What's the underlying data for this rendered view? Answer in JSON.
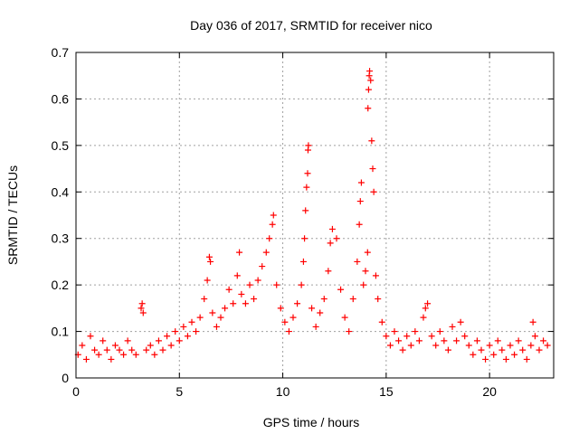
{
  "chart_data": {
    "type": "scatter",
    "title": "Day 036 of 2017, SRMTID for receiver nico",
    "xlabel": "GPS time / hours",
    "ylabel": "SRMTID / TECUs",
    "xlim": [
      0,
      23.1
    ],
    "ylim": [
      0,
      0.7
    ],
    "xticks": [
      0,
      5,
      10,
      15,
      20
    ],
    "xtick_labels": [
      "0",
      "5",
      "10",
      "15",
      "20"
    ],
    "yticks": [
      0,
      0.1,
      0.2,
      0.3,
      0.4,
      0.5,
      0.6,
      0.7
    ],
    "ytick_labels": [
      "0",
      "0.1",
      "0.2",
      "0.3",
      "0.4",
      "0.5",
      "0.6",
      "0.7"
    ],
    "grid": true,
    "marker": "plus",
    "series": [
      {
        "name": "SRMTID",
        "color": "#ff0000",
        "points": [
          [
            0.1,
            0.05
          ],
          [
            0.3,
            0.07
          ],
          [
            0.5,
            0.04
          ],
          [
            0.7,
            0.09
          ],
          [
            0.9,
            0.06
          ],
          [
            1.1,
            0.05
          ],
          [
            1.3,
            0.08
          ],
          [
            1.5,
            0.06
          ],
          [
            1.7,
            0.04
          ],
          [
            1.9,
            0.07
          ],
          [
            2.1,
            0.06
          ],
          [
            2.3,
            0.05
          ],
          [
            2.5,
            0.08
          ],
          [
            2.7,
            0.06
          ],
          [
            2.9,
            0.05
          ],
          [
            3.15,
            0.15
          ],
          [
            3.2,
            0.16
          ],
          [
            3.25,
            0.14
          ],
          [
            3.4,
            0.06
          ],
          [
            3.6,
            0.07
          ],
          [
            3.8,
            0.05
          ],
          [
            4.0,
            0.08
          ],
          [
            4.2,
            0.06
          ],
          [
            4.4,
            0.09
          ],
          [
            4.6,
            0.07
          ],
          [
            4.8,
            0.1
          ],
          [
            5.0,
            0.08
          ],
          [
            5.2,
            0.11
          ],
          [
            5.4,
            0.09
          ],
          [
            5.6,
            0.12
          ],
          [
            5.8,
            0.1
          ],
          [
            6.0,
            0.13
          ],
          [
            6.2,
            0.17
          ],
          [
            6.35,
            0.21
          ],
          [
            6.45,
            0.26
          ],
          [
            6.5,
            0.25
          ],
          [
            6.6,
            0.14
          ],
          [
            6.8,
            0.11
          ],
          [
            7.0,
            0.13
          ],
          [
            7.2,
            0.15
          ],
          [
            7.4,
            0.19
          ],
          [
            7.6,
            0.16
          ],
          [
            7.8,
            0.22
          ],
          [
            7.9,
            0.27
          ],
          [
            8.0,
            0.18
          ],
          [
            8.2,
            0.16
          ],
          [
            8.4,
            0.2
          ],
          [
            8.6,
            0.17
          ],
          [
            8.8,
            0.21
          ],
          [
            9.0,
            0.24
          ],
          [
            9.2,
            0.27
          ],
          [
            9.35,
            0.3
          ],
          [
            9.5,
            0.33
          ],
          [
            9.55,
            0.35
          ],
          [
            9.7,
            0.2
          ],
          [
            9.9,
            0.15
          ],
          [
            10.1,
            0.12
          ],
          [
            10.3,
            0.1
          ],
          [
            10.5,
            0.13
          ],
          [
            10.7,
            0.16
          ],
          [
            10.9,
            0.2
          ],
          [
            11.0,
            0.25
          ],
          [
            11.05,
            0.3
          ],
          [
            11.1,
            0.36
          ],
          [
            11.15,
            0.41
          ],
          [
            11.2,
            0.44
          ],
          [
            11.22,
            0.49
          ],
          [
            11.24,
            0.5
          ],
          [
            11.4,
            0.15
          ],
          [
            11.6,
            0.11
          ],
          [
            11.8,
            0.14
          ],
          [
            12.0,
            0.17
          ],
          [
            12.2,
            0.23
          ],
          [
            12.3,
            0.29
          ],
          [
            12.4,
            0.32
          ],
          [
            12.6,
            0.3
          ],
          [
            12.8,
            0.19
          ],
          [
            13.0,
            0.13
          ],
          [
            13.2,
            0.1
          ],
          [
            13.4,
            0.17
          ],
          [
            13.6,
            0.25
          ],
          [
            13.7,
            0.33
          ],
          [
            13.75,
            0.38
          ],
          [
            13.8,
            0.42
          ],
          [
            13.9,
            0.2
          ],
          [
            14.0,
            0.23
          ],
          [
            14.1,
            0.27
          ],
          [
            14.12,
            0.58
          ],
          [
            14.15,
            0.62
          ],
          [
            14.18,
            0.65
          ],
          [
            14.2,
            0.66
          ],
          [
            14.25,
            0.64
          ],
          [
            14.3,
            0.51
          ],
          [
            14.35,
            0.45
          ],
          [
            14.4,
            0.4
          ],
          [
            14.5,
            0.22
          ],
          [
            14.6,
            0.17
          ],
          [
            14.8,
            0.12
          ],
          [
            15.0,
            0.09
          ],
          [
            15.2,
            0.07
          ],
          [
            15.4,
            0.1
          ],
          [
            15.6,
            0.08
          ],
          [
            15.8,
            0.06
          ],
          [
            16.0,
            0.09
          ],
          [
            16.2,
            0.07
          ],
          [
            16.4,
            0.1
          ],
          [
            16.6,
            0.08
          ],
          [
            16.8,
            0.13
          ],
          [
            16.9,
            0.15
          ],
          [
            17.0,
            0.16
          ],
          [
            17.2,
            0.09
          ],
          [
            17.4,
            0.07
          ],
          [
            17.6,
            0.1
          ],
          [
            17.8,
            0.08
          ],
          [
            18.0,
            0.06
          ],
          [
            18.2,
            0.11
          ],
          [
            18.4,
            0.08
          ],
          [
            18.6,
            0.12
          ],
          [
            18.8,
            0.09
          ],
          [
            19.0,
            0.07
          ],
          [
            19.2,
            0.05
          ],
          [
            19.4,
            0.08
          ],
          [
            19.6,
            0.06
          ],
          [
            19.8,
            0.04
          ],
          [
            20.0,
            0.07
          ],
          [
            20.2,
            0.05
          ],
          [
            20.4,
            0.08
          ],
          [
            20.6,
            0.06
          ],
          [
            20.8,
            0.04
          ],
          [
            21.0,
            0.07
          ],
          [
            21.2,
            0.05
          ],
          [
            21.4,
            0.08
          ],
          [
            21.6,
            0.06
          ],
          [
            21.8,
            0.04
          ],
          [
            22.0,
            0.07
          ],
          [
            22.1,
            0.12
          ],
          [
            22.2,
            0.09
          ],
          [
            22.4,
            0.06
          ],
          [
            22.6,
            0.08
          ],
          [
            22.8,
            0.07
          ]
        ]
      }
    ]
  }
}
